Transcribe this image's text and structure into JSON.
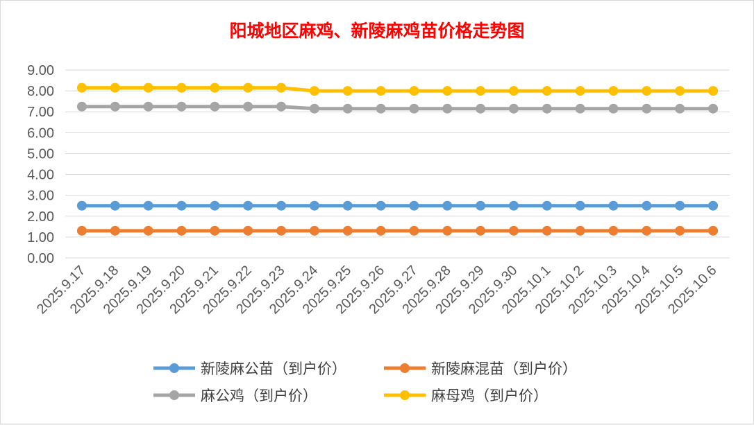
{
  "chart_data": {
    "type": "line",
    "title": "阳城地区麻鸡、新陵麻鸡苗价格走势图",
    "categories": [
      "2025.9.17",
      "2025.9.18",
      "2025.9.19",
      "2025.9.20",
      "2025.9.21",
      "2025.9.22",
      "2025.9.23",
      "2025.9.24",
      "2025.9.25",
      "2025.9.26",
      "2025.9.27",
      "2025.9.28",
      "2025.9.29",
      "2025.9.30",
      "2025.10.1",
      "2025.10.2",
      "2025.10.3",
      "2025.10.4",
      "2025.10.5",
      "2025.10.6"
    ],
    "ylim": [
      0,
      9
    ],
    "yticks": [
      "0.00",
      "1.00",
      "2.00",
      "3.00",
      "4.00",
      "5.00",
      "6.00",
      "7.00",
      "8.00",
      "9.00"
    ],
    "grid": true,
    "legend_position": "bottom",
    "series": [
      {
        "name": "新陵麻公苗（到户价）",
        "color": "#5b9bd5",
        "values": [
          2.5,
          2.5,
          2.5,
          2.5,
          2.5,
          2.5,
          2.5,
          2.5,
          2.5,
          2.5,
          2.5,
          2.5,
          2.5,
          2.5,
          2.5,
          2.5,
          2.5,
          2.5,
          2.5,
          2.5
        ]
      },
      {
        "name": "新陵麻混苗（到户价）",
        "color": "#ed7d31",
        "values": [
          1.3,
          1.3,
          1.3,
          1.3,
          1.3,
          1.3,
          1.3,
          1.3,
          1.3,
          1.3,
          1.3,
          1.3,
          1.3,
          1.3,
          1.3,
          1.3,
          1.3,
          1.3,
          1.3,
          1.3
        ]
      },
      {
        "name": "麻公鸡（到户价）",
        "color": "#a5a5a5",
        "values": [
          7.25,
          7.25,
          7.25,
          7.25,
          7.25,
          7.25,
          7.25,
          7.15,
          7.15,
          7.15,
          7.15,
          7.15,
          7.15,
          7.15,
          7.15,
          7.15,
          7.15,
          7.15,
          7.15,
          7.15
        ]
      },
      {
        "name": "麻母鸡（到户价）",
        "color": "#ffc000",
        "values": [
          8.15,
          8.15,
          8.15,
          8.15,
          8.15,
          8.15,
          8.15,
          8.0,
          8.0,
          8.0,
          8.0,
          8.0,
          8.0,
          8.0,
          8.0,
          8.0,
          8.0,
          8.0,
          8.0,
          8.0
        ]
      }
    ]
  }
}
